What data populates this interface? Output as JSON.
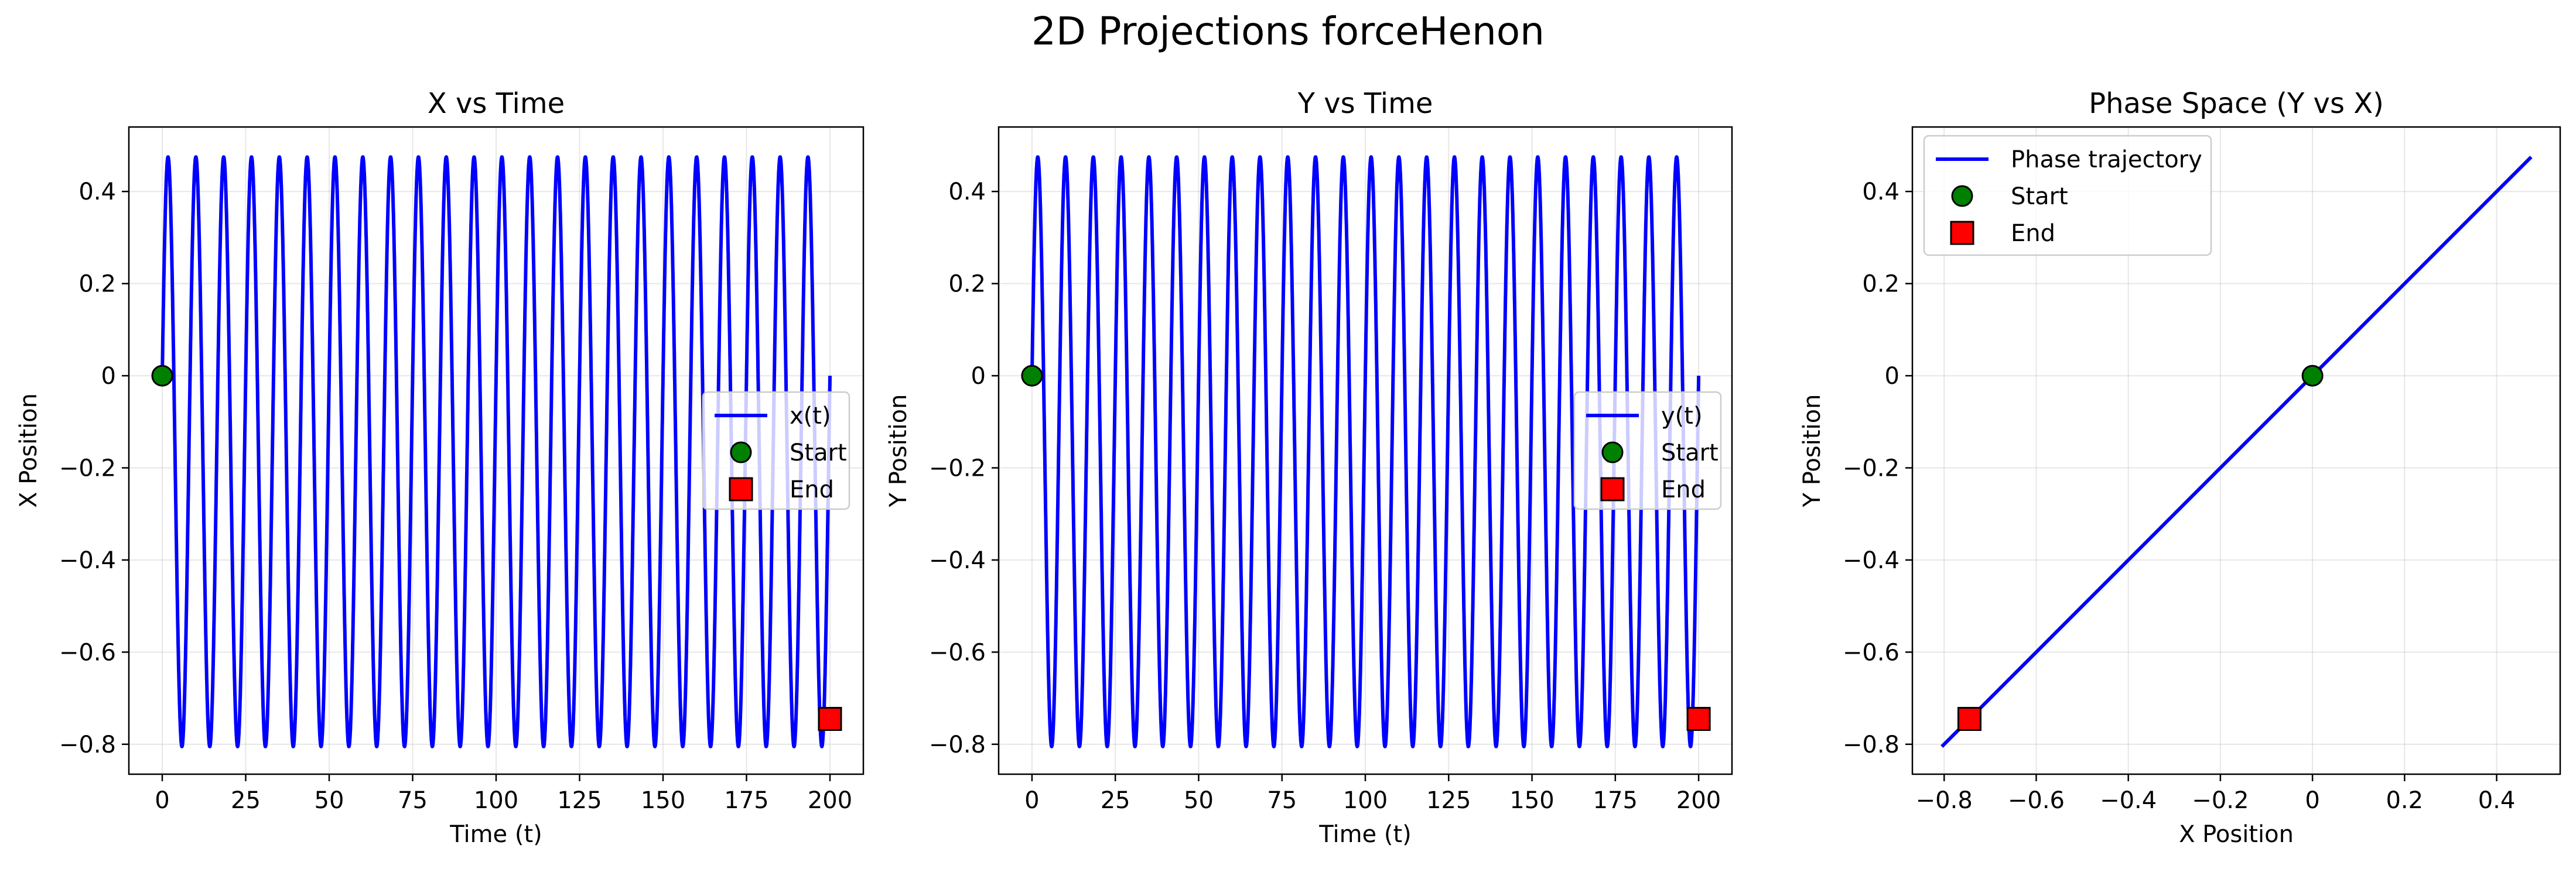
{
  "figure": {
    "suptitle": "2D Projections forceHenon"
  },
  "colors": {
    "line": "#0000ff",
    "start_marker": "#008000",
    "end_marker": "#ff0000",
    "marker_edge": "#000000"
  },
  "chart_data": [
    {
      "type": "line",
      "title": "X vs Time",
      "xlabel": "Time (t)",
      "ylabel": "X Position",
      "xlim": [
        -10,
        210
      ],
      "ylim": [
        -0.865,
        0.54
      ],
      "xticks": [
        0,
        25,
        50,
        75,
        100,
        125,
        150,
        175,
        200
      ],
      "yticks": [
        -0.8,
        -0.6,
        -0.4,
        -0.2,
        0.0,
        0.2,
        0.4
      ],
      "grid": true,
      "legend_position": "center-right",
      "series": [
        {
          "name": "x(t)",
          "kind": "oscillation",
          "x_range": [
            0,
            200
          ],
          "min": -0.805,
          "max": 0.475,
          "cycles": 24,
          "start_value": 0.0,
          "end_value": -0.745
        }
      ],
      "markers": [
        {
          "name": "Start",
          "x": 0,
          "y": 0.0,
          "shape": "circle"
        },
        {
          "name": "End",
          "x": 200,
          "y": -0.745,
          "shape": "square"
        }
      ]
    },
    {
      "type": "line",
      "title": "Y vs Time",
      "xlabel": "Time (t)",
      "ylabel": "Y Position",
      "xlim": [
        -10,
        210
      ],
      "ylim": [
        -0.865,
        0.54
      ],
      "xticks": [
        0,
        25,
        50,
        75,
        100,
        125,
        150,
        175,
        200
      ],
      "yticks": [
        -0.8,
        -0.6,
        -0.4,
        -0.2,
        0.0,
        0.2,
        0.4
      ],
      "grid": true,
      "legend_position": "center-right",
      "series": [
        {
          "name": "y(t)",
          "kind": "oscillation",
          "x_range": [
            0,
            200
          ],
          "min": -0.805,
          "max": 0.475,
          "cycles": 24,
          "start_value": 0.0,
          "end_value": -0.745
        }
      ],
      "markers": [
        {
          "name": "Start",
          "x": 0,
          "y": 0.0,
          "shape": "circle"
        },
        {
          "name": "End",
          "x": 200,
          "y": -0.745,
          "shape": "square"
        }
      ]
    },
    {
      "type": "line",
      "title": "Phase Space (Y vs X)",
      "xlabel": "X Position",
      "ylabel": "Y Position",
      "xlim": [
        -0.869,
        0.538
      ],
      "ylim": [
        -0.865,
        0.54
      ],
      "xticks": [
        -0.8,
        -0.6,
        -0.4,
        -0.2,
        0.0,
        0.2,
        0.4
      ],
      "yticks": [
        -0.8,
        -0.6,
        -0.4,
        -0.2,
        0.0,
        0.2,
        0.4
      ],
      "grid": true,
      "legend_position": "upper-left",
      "series": [
        {
          "name": "Phase trajectory",
          "kind": "line",
          "x": [
            -0.805,
            0.475
          ],
          "y": [
            -0.805,
            0.475
          ]
        }
      ],
      "markers": [
        {
          "name": "Start",
          "x": 0.0,
          "y": 0.0,
          "shape": "circle"
        },
        {
          "name": "End",
          "x": -0.745,
          "y": -0.745,
          "shape": "square"
        }
      ]
    }
  ]
}
